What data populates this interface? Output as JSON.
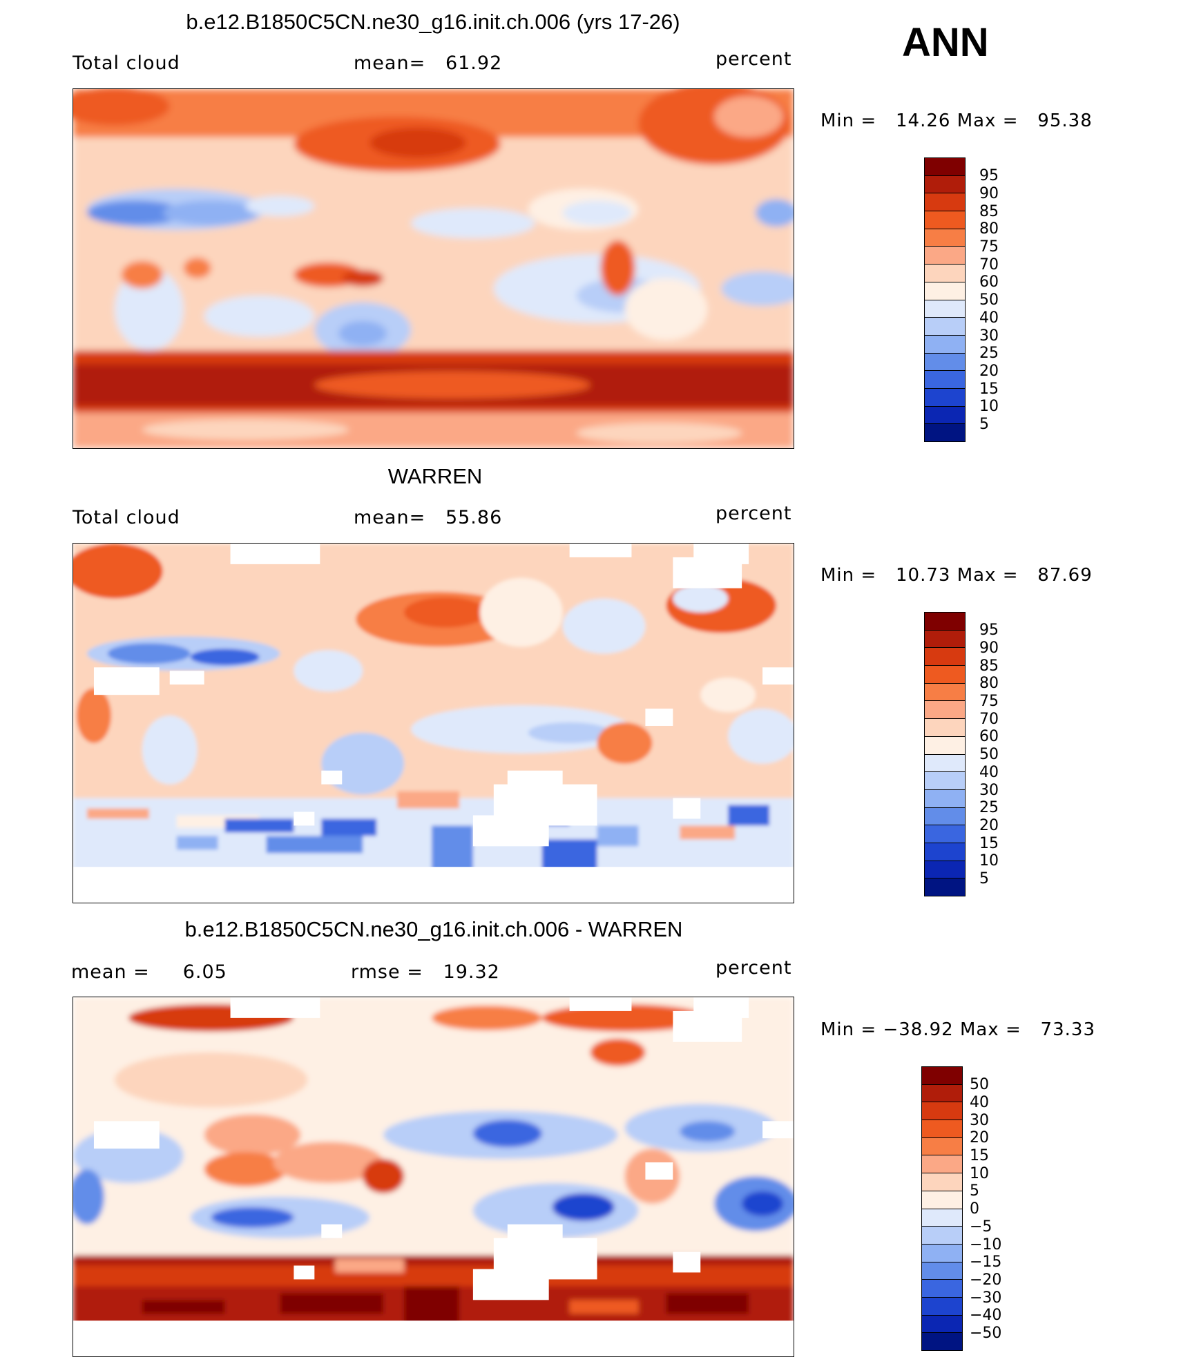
{
  "season": "ANN",
  "units": "percent",
  "panels": [
    {
      "title": "b.e12.B1850C5CN.ne30_g16.init.ch.006 (yrs 17-26)",
      "left_label": "Total cloud",
      "center_label": "mean=",
      "center_value": "61.92",
      "right_label": "percent",
      "min_label": "Min =",
      "min_value": "14.26",
      "max_label": "Max =",
      "max_value": "95.38",
      "colorbar_labels": [
        "95",
        "90",
        "85",
        "80",
        "75",
        "70",
        "60",
        "50",
        "40",
        "30",
        "25",
        "20",
        "15",
        "10",
        "5"
      ],
      "map_fields": [
        "field-model"
      ]
    },
    {
      "title": "WARREN",
      "left_label": "Total cloud",
      "center_label": "mean=",
      "center_value": "55.86",
      "right_label": "percent",
      "min_label": "Min =",
      "min_value": "10.73",
      "max_label": "Max =",
      "max_value": "87.69",
      "colorbar_labels": [
        "95",
        "90",
        "85",
        "80",
        "75",
        "70",
        "60",
        "50",
        "40",
        "30",
        "25",
        "20",
        "15",
        "10",
        "5"
      ],
      "map_fields": [
        "field-obs"
      ]
    },
    {
      "title": "b.e12.B1850C5CN.ne30_g16.init.ch.006 - WARREN",
      "left_label": "mean =",
      "left_value": "6.05",
      "center_label": "rmse =",
      "center_value": "19.32",
      "right_label": "percent",
      "min_label": "Min =",
      "min_value": "−38.92",
      "max_label": "Max =",
      "max_value": "73.33",
      "colorbar_labels": [
        "50",
        "40",
        "30",
        "20",
        "15",
        "10",
        "5",
        "0",
        "−5",
        "−10",
        "−15",
        "−20",
        "−30",
        "−40",
        "−50"
      ],
      "map_fields": [
        "field-diff"
      ]
    }
  ],
  "colorbar_colors": [
    "#7f0000",
    "#b01d0a",
    "#d73a10",
    "#ee5a20",
    "#f77e45",
    "#fba886",
    "#fdd5bd",
    "#fef0e4",
    "#dfe9fb",
    "#b8cef8",
    "#8fb1f3",
    "#628de9",
    "#3a66e0",
    "#1d44cf",
    "#0b26b3",
    "#001482"
  ]
}
